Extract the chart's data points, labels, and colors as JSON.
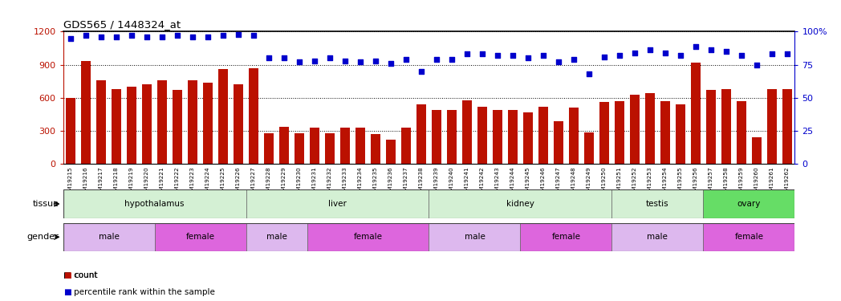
{
  "title": "GDS565 / 1448324_at",
  "samples": [
    "GSM19215",
    "GSM19216",
    "GSM19217",
    "GSM19218",
    "GSM19219",
    "GSM19220",
    "GSM19221",
    "GSM19222",
    "GSM19223",
    "GSM19224",
    "GSM19225",
    "GSM19226",
    "GSM19227",
    "GSM19228",
    "GSM19229",
    "GSM19230",
    "GSM19231",
    "GSM19232",
    "GSM19233",
    "GSM19234",
    "GSM19235",
    "GSM19236",
    "GSM19237",
    "GSM19238",
    "GSM19239",
    "GSM19240",
    "GSM19241",
    "GSM19242",
    "GSM19243",
    "GSM19244",
    "GSM19245",
    "GSM19246",
    "GSM19247",
    "GSM19248",
    "GSM19249",
    "GSM19250",
    "GSM19251",
    "GSM19252",
    "GSM19253",
    "GSM19254",
    "GSM19255",
    "GSM19256",
    "GSM19257",
    "GSM19258",
    "GSM19259",
    "GSM19260",
    "GSM19261",
    "GSM19262"
  ],
  "counts": [
    600,
    930,
    760,
    680,
    700,
    720,
    760,
    670,
    760,
    740,
    860,
    720,
    870,
    280,
    340,
    280,
    330,
    280,
    330,
    330,
    270,
    220,
    330,
    540,
    490,
    490,
    580,
    520,
    490,
    490,
    470,
    520,
    390,
    510,
    290,
    560,
    570,
    630,
    640,
    570,
    540,
    920,
    670,
    680,
    570,
    245,
    680,
    680
  ],
  "percentiles": [
    95,
    97,
    96,
    96,
    97,
    96,
    96,
    97,
    96,
    96,
    97,
    98,
    97,
    80,
    80,
    77,
    78,
    80,
    78,
    77,
    78,
    76,
    79,
    70,
    79,
    79,
    83,
    83,
    82,
    82,
    80,
    82,
    77,
    79,
    68,
    81,
    82,
    84,
    86,
    84,
    82,
    89,
    86,
    85,
    82,
    75,
    83,
    83
  ],
  "ylim_left": [
    0,
    1200
  ],
  "ylim_right": [
    0,
    100
  ],
  "yticks_left": [
    0,
    300,
    600,
    900,
    1200
  ],
  "yticks_right": [
    0,
    25,
    50,
    75,
    100
  ],
  "bar_color": "#bb1100",
  "dot_color": "#0000cc",
  "chart_bg": "#ffffff",
  "fig_bg": "#ffffff",
  "tissue_groups": [
    {
      "label": "hypothalamus",
      "start": 0,
      "end": 11,
      "color": "#d4f0d4"
    },
    {
      "label": "liver",
      "start": 12,
      "end": 23,
      "color": "#d4f0d4"
    },
    {
      "label": "kidney",
      "start": 24,
      "end": 35,
      "color": "#d4f0d4"
    },
    {
      "label": "testis",
      "start": 36,
      "end": 41,
      "color": "#d4f0d4"
    },
    {
      "label": "ovary",
      "start": 42,
      "end": 47,
      "color": "#66dd66"
    }
  ],
  "gender_groups": [
    {
      "label": "male",
      "start": 0,
      "end": 5,
      "color": "#ddb8ee"
    },
    {
      "label": "female",
      "start": 6,
      "end": 11,
      "color": "#dd66dd"
    },
    {
      "label": "male",
      "start": 12,
      "end": 15,
      "color": "#ddb8ee"
    },
    {
      "label": "female",
      "start": 16,
      "end": 23,
      "color": "#dd66dd"
    },
    {
      "label": "male",
      "start": 24,
      "end": 29,
      "color": "#ddb8ee"
    },
    {
      "label": "female",
      "start": 30,
      "end": 35,
      "color": "#dd66dd"
    },
    {
      "label": "male",
      "start": 36,
      "end": 41,
      "color": "#ddb8ee"
    },
    {
      "label": "female",
      "start": 42,
      "end": 47,
      "color": "#dd66dd"
    }
  ]
}
